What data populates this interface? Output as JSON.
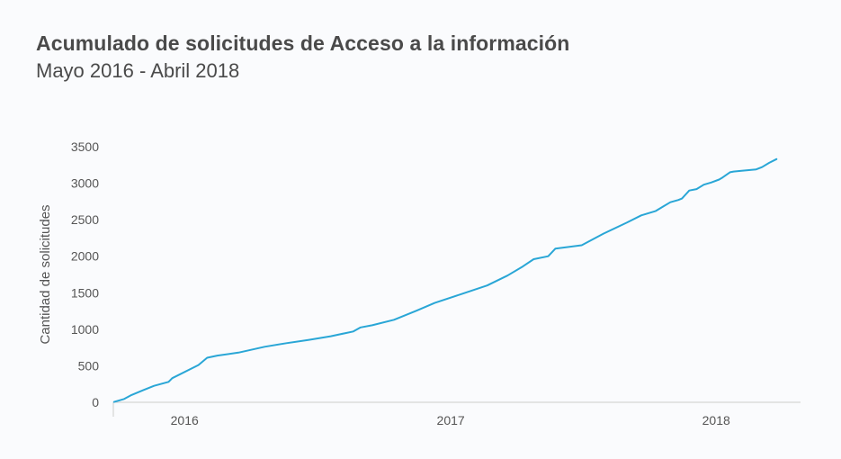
{
  "chart_data": {
    "type": "line",
    "title": "Acumulado de solicitudes de Acceso a la información",
    "subtitle": "Mayo 2016 - Abril 2018",
    "ylabel": "Cantidad de solicitudes",
    "xlabel": "",
    "ylim": [
      0,
      3500
    ],
    "yticks": [
      0,
      500,
      1000,
      1500,
      2000,
      2500,
      3000,
      3500
    ],
    "ytick_labels": [
      "0",
      "500",
      "1000",
      "1500",
      "2000",
      "2500",
      "3000",
      "3500"
    ],
    "xlim": [
      "2015-09-25",
      "2018-04-27"
    ],
    "xticks": [
      "2016-01-01",
      "2017-01-01",
      "2018-01-01"
    ],
    "xtick_labels": [
      "2016",
      "2017",
      "2018"
    ],
    "grid": false,
    "color": "#29a6d6",
    "series": [
      {
        "x": [
          "2015-09-26",
          "2015-10-10",
          "2015-10-20",
          "2015-11-05",
          "2015-11-20",
          "2015-12-10",
          "2015-12-15",
          "2016-01-20",
          "2016-02-01",
          "2016-02-15",
          "2016-03-15",
          "2016-04-20",
          "2016-05-20",
          "2016-06-20",
          "2016-07-20",
          "2016-08-20",
          "2016-08-30",
          "2016-09-15",
          "2016-10-15",
          "2016-11-15",
          "2016-12-10",
          "2017-01-15",
          "2017-02-20",
          "2017-03-20",
          "2017-04-10",
          "2017-04-25",
          "2017-05-15",
          "2017-05-25",
          "2017-06-30",
          "2017-07-30",
          "2017-08-31",
          "2017-09-20",
          "2017-10-10",
          "2017-10-20",
          "2017-10-30",
          "2017-11-10",
          "2017-11-15",
          "2017-11-25",
          "2017-12-05",
          "2017-12-15",
          "2017-12-25",
          "2018-01-05",
          "2018-01-10",
          "2018-01-20",
          "2018-01-25",
          "2018-02-05",
          "2018-02-15",
          "2018-02-25",
          "2018-03-05",
          "2018-03-15",
          "2018-03-25"
        ],
        "y": [
          5,
          45,
          100,
          165,
          225,
          280,
          330,
          510,
          610,
          640,
          680,
          760,
          810,
          855,
          905,
          970,
          1025,
          1055,
          1130,
          1255,
          1360,
          1480,
          1600,
          1735,
          1860,
          1960,
          2000,
          2105,
          2150,
          2310,
          2460,
          2560,
          2620,
          2680,
          2740,
          2770,
          2790,
          2900,
          2920,
          2980,
          3010,
          3050,
          3080,
          3150,
          3160,
          3170,
          3180,
          3190,
          3220,
          3280,
          3330
        ]
      }
    ]
  }
}
